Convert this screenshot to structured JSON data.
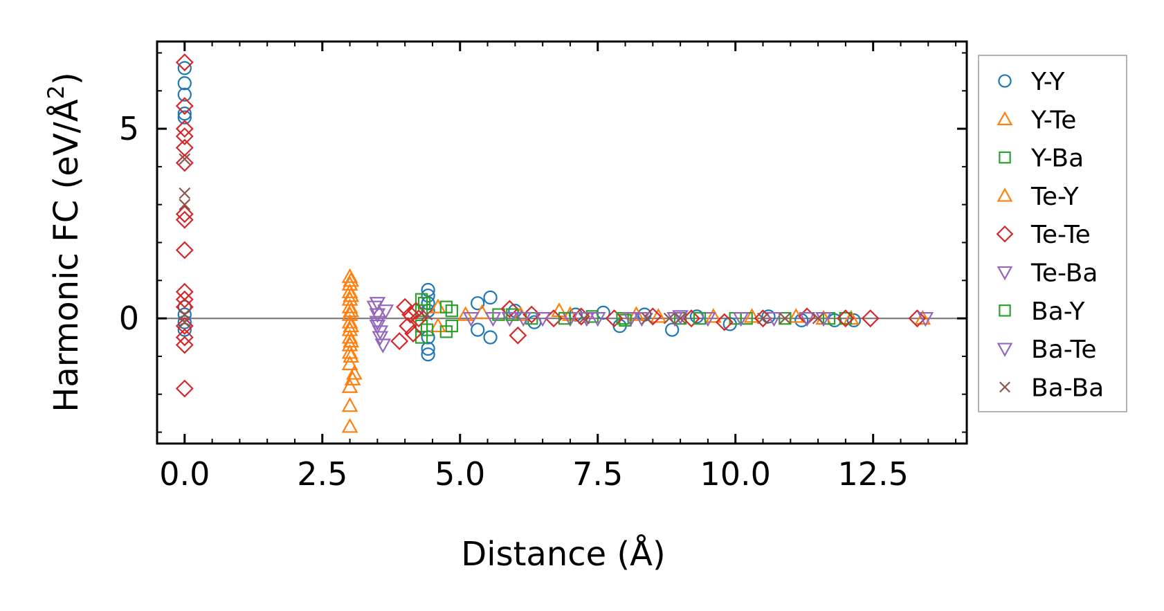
{
  "chart_data": {
    "type": "scatter",
    "title": "",
    "xlabel": "Distance (Å)",
    "ylabel_main": "Harmonic FC (eV/Å",
    "ylabel_sup": "2",
    "ylabel_close": ")",
    "xlim": [
      -0.5,
      14.2
    ],
    "ylim": [
      -3.3,
      7.3
    ],
    "xticks": [
      {
        "value": 0.0,
        "label": "0.0"
      },
      {
        "value": 2.5,
        "label": "2.5"
      },
      {
        "value": 5.0,
        "label": "5.0"
      },
      {
        "value": 7.5,
        "label": "7.5"
      },
      {
        "value": 10.0,
        "label": "10.0"
      },
      {
        "value": 12.5,
        "label": "12.5"
      }
    ],
    "yticks": [
      {
        "value": 0,
        "label": "0"
      },
      {
        "value": 5,
        "label": "5"
      }
    ],
    "x_minor_step": 0.5,
    "y_minor_step": 1,
    "zero_line": true,
    "grid": false,
    "legend_position": "outside-right",
    "series": [
      {
        "name": "Y-Y",
        "marker": "circle",
        "color": "#1f77b4",
        "points": [
          [
            0.0,
            6.6
          ],
          [
            0.0,
            6.2
          ],
          [
            0.0,
            5.9
          ],
          [
            0.0,
            5.4
          ],
          [
            0.0,
            5.3
          ],
          [
            0.0,
            0.3
          ],
          [
            0.0,
            0.1
          ],
          [
            0.0,
            -0.1
          ],
          [
            0.0,
            -0.3
          ],
          [
            4.42,
            0.75
          ],
          [
            4.42,
            0.6
          ],
          [
            4.42,
            0.4
          ],
          [
            4.42,
            0.2
          ],
          [
            4.42,
            -0.5
          ],
          [
            4.42,
            -0.8
          ],
          [
            4.42,
            -0.95
          ],
          [
            5.32,
            0.4
          ],
          [
            5.32,
            -0.3
          ],
          [
            5.55,
            0.55
          ],
          [
            5.55,
            -0.5
          ],
          [
            6.0,
            0.2
          ],
          [
            6.35,
            -0.1
          ],
          [
            7.1,
            0.1
          ],
          [
            7.6,
            0.15
          ],
          [
            7.9,
            -0.2
          ],
          [
            8.35,
            0.1
          ],
          [
            8.85,
            -0.3
          ],
          [
            9.3,
            0.05
          ],
          [
            9.9,
            -0.15
          ],
          [
            10.6,
            0.05
          ],
          [
            11.2,
            -0.05
          ],
          [
            11.8,
            -0.05
          ],
          [
            12.15,
            -0.05
          ]
        ]
      },
      {
        "name": "Y-Te",
        "marker": "triangle-up",
        "color": "#ff7f0e",
        "points": [
          [
            3.0,
            1.1
          ],
          [
            3.0,
            0.9
          ],
          [
            3.0,
            0.7
          ],
          [
            3.0,
            0.5
          ],
          [
            3.0,
            0.3
          ],
          [
            3.0,
            0.1
          ],
          [
            3.0,
            -0.1
          ],
          [
            3.0,
            -0.3
          ],
          [
            3.0,
            -0.5
          ],
          [
            3.0,
            -0.7
          ],
          [
            3.0,
            -0.9
          ],
          [
            3.0,
            -1.2
          ],
          [
            3.0,
            -1.8
          ],
          [
            3.0,
            -2.3
          ],
          [
            3.0,
            -2.85
          ],
          [
            3.05,
            -1.6
          ],
          [
            4.6,
            0.3
          ],
          [
            4.6,
            -0.2
          ],
          [
            5.1,
            0.1
          ],
          [
            6.8,
            0.2
          ],
          [
            8.2,
            0.1
          ],
          [
            9.6,
            0.05
          ],
          [
            11.1,
            0.05
          ],
          [
            12.1,
            0.0
          ],
          [
            13.4,
            0.0
          ]
        ]
      },
      {
        "name": "Y-Ba",
        "marker": "square",
        "color": "#2ca02c",
        "points": [
          [
            4.3,
            0.5
          ],
          [
            4.3,
            0.2
          ],
          [
            4.3,
            -0.2
          ],
          [
            4.3,
            -0.5
          ],
          [
            4.85,
            0.2
          ],
          [
            4.85,
            -0.2
          ],
          [
            5.7,
            0.1
          ],
          [
            6.3,
            0.0
          ],
          [
            7.4,
            0.05
          ],
          [
            8.0,
            -0.05
          ],
          [
            9.0,
            0.0
          ],
          [
            10.0,
            0.0
          ],
          [
            10.9,
            0.0
          ],
          [
            12.0,
            0.0
          ]
        ]
      },
      {
        "name": "Te-Y",
        "marker": "triangle-up",
        "color": "#ff7f0e",
        "points": [
          [
            3.02,
            1.0
          ],
          [
            3.02,
            0.6
          ],
          [
            3.02,
            0.2
          ],
          [
            3.02,
            -0.2
          ],
          [
            3.02,
            -0.6
          ],
          [
            3.02,
            -1.0
          ],
          [
            3.08,
            -1.45
          ],
          [
            5.4,
            0.15
          ],
          [
            6.1,
            0.1
          ],
          [
            7.0,
            0.1
          ],
          [
            8.6,
            0.05
          ],
          [
            10.3,
            0.05
          ],
          [
            11.6,
            0.0
          ]
        ]
      },
      {
        "name": "Te-Te",
        "marker": "diamond",
        "color": "#d62728",
        "points": [
          [
            0.0,
            6.75
          ],
          [
            0.0,
            5.6
          ],
          [
            0.0,
            5.0
          ],
          [
            0.0,
            4.8
          ],
          [
            0.0,
            4.5
          ],
          [
            0.0,
            4.1
          ],
          [
            0.0,
            2.75
          ],
          [
            0.0,
            2.6
          ],
          [
            0.0,
            1.8
          ],
          [
            0.0,
            0.7
          ],
          [
            0.0,
            0.5
          ],
          [
            0.0,
            0.3
          ],
          [
            0.0,
            -0.2
          ],
          [
            0.0,
            -0.5
          ],
          [
            0.0,
            -0.7
          ],
          [
            0.0,
            -1.85
          ],
          [
            3.9,
            -0.6
          ],
          [
            4.0,
            0.3
          ],
          [
            4.05,
            -0.2
          ],
          [
            4.1,
            0.1
          ],
          [
            4.15,
            -0.4
          ],
          [
            4.2,
            0.2
          ],
          [
            4.25,
            0.0
          ],
          [
            5.9,
            0.25
          ],
          [
            6.05,
            -0.45
          ],
          [
            6.3,
            0.1
          ],
          [
            6.7,
            0.0
          ],
          [
            7.2,
            0.05
          ],
          [
            7.8,
            0.0
          ],
          [
            8.5,
            0.05
          ],
          [
            9.2,
            0.0
          ],
          [
            9.8,
            -0.1
          ],
          [
            10.5,
            0.0
          ],
          [
            11.3,
            0.05
          ],
          [
            12.0,
            0.0
          ],
          [
            12.45,
            0.0
          ],
          [
            13.3,
            0.0
          ]
        ]
      },
      {
        "name": "Te-Ba",
        "marker": "triangle-down",
        "color": "#9467bd",
        "points": [
          [
            3.5,
            0.4
          ],
          [
            3.5,
            0.1
          ],
          [
            3.5,
            -0.2
          ],
          [
            3.55,
            -0.5
          ],
          [
            3.6,
            -0.7
          ],
          [
            3.65,
            0.2
          ],
          [
            5.2,
            0.0
          ],
          [
            5.9,
            0.0
          ],
          [
            6.5,
            0.0
          ],
          [
            7.0,
            0.0
          ],
          [
            7.5,
            0.0
          ],
          [
            8.3,
            0.0
          ],
          [
            9.0,
            0.05
          ],
          [
            9.5,
            0.0
          ],
          [
            10.7,
            0.0
          ],
          [
            11.3,
            0.0
          ],
          [
            13.45,
            0.0
          ]
        ]
      },
      {
        "name": "Ba-Y",
        "marker": "square",
        "color": "#2ca02c",
        "points": [
          [
            4.35,
            0.4
          ],
          [
            4.4,
            -0.3
          ],
          [
            4.75,
            0.3
          ],
          [
            4.75,
            -0.35
          ],
          [
            5.95,
            0.1
          ],
          [
            6.9,
            0.0
          ],
          [
            7.95,
            0.0
          ],
          [
            9.35,
            0.0
          ],
          [
            10.2,
            0.0
          ],
          [
            11.7,
            0.0
          ]
        ]
      },
      {
        "name": "Ba-Te",
        "marker": "triangle-down",
        "color": "#9467bd",
        "points": [
          [
            3.45,
            0.3
          ],
          [
            3.5,
            -0.1
          ],
          [
            3.55,
            -0.35
          ],
          [
            5.6,
            0.0
          ],
          [
            6.15,
            0.0
          ],
          [
            7.3,
            0.0
          ],
          [
            8.1,
            0.0
          ],
          [
            8.9,
            0.0
          ],
          [
            10.1,
            0.0
          ],
          [
            11.6,
            0.0
          ]
        ]
      },
      {
        "name": "Ba-Ba",
        "marker": "x",
        "color": "#8c564b",
        "points": [
          [
            0.0,
            4.2
          ],
          [
            0.0,
            3.3
          ],
          [
            0.0,
            3.0
          ],
          [
            0.0,
            0.1
          ],
          [
            0.0,
            -0.1
          ],
          [
            4.4,
            0.1
          ],
          [
            7.25,
            0.0
          ],
          [
            8.4,
            0.0
          ],
          [
            8.8,
            0.0
          ],
          [
            9.0,
            0.0
          ],
          [
            10.5,
            0.0
          ],
          [
            10.9,
            0.0
          ],
          [
            11.5,
            0.0
          ]
        ]
      }
    ]
  }
}
